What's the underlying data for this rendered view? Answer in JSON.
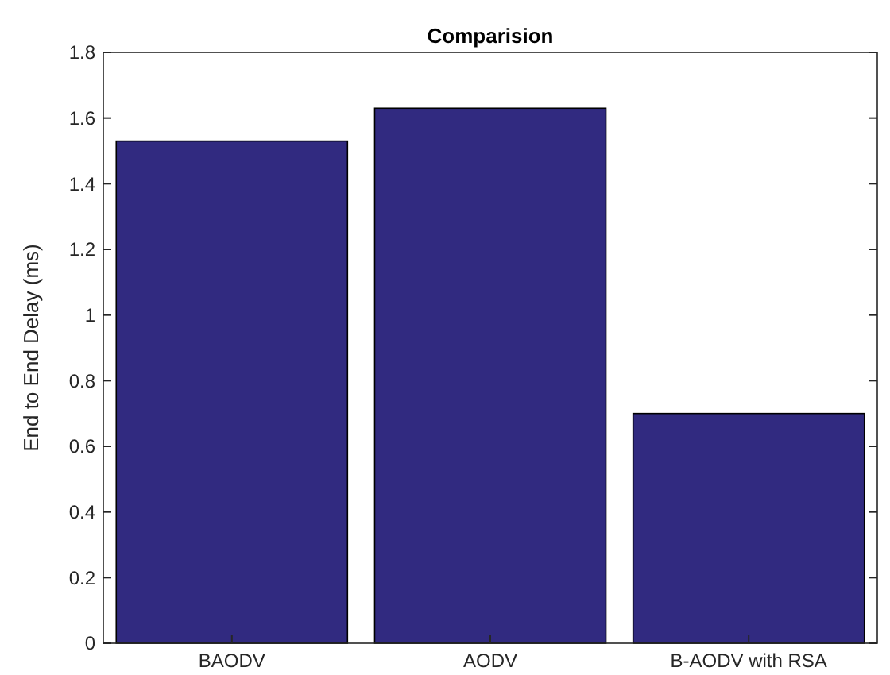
{
  "chart_data": {
    "type": "bar",
    "title": "Comparision",
    "ylabel": "End to End Delay (ms)",
    "categories": [
      "BAODV",
      "AODV",
      "B-AODV with RSA"
    ],
    "values": [
      1.53,
      1.63,
      0.7
    ],
    "color": "#312a80",
    "ylim": [
      0,
      1.8
    ],
    "yticks": [
      0,
      0.2,
      0.4,
      0.6,
      0.8,
      1,
      1.2,
      1.4,
      1.6,
      1.8
    ],
    "grid": false
  }
}
